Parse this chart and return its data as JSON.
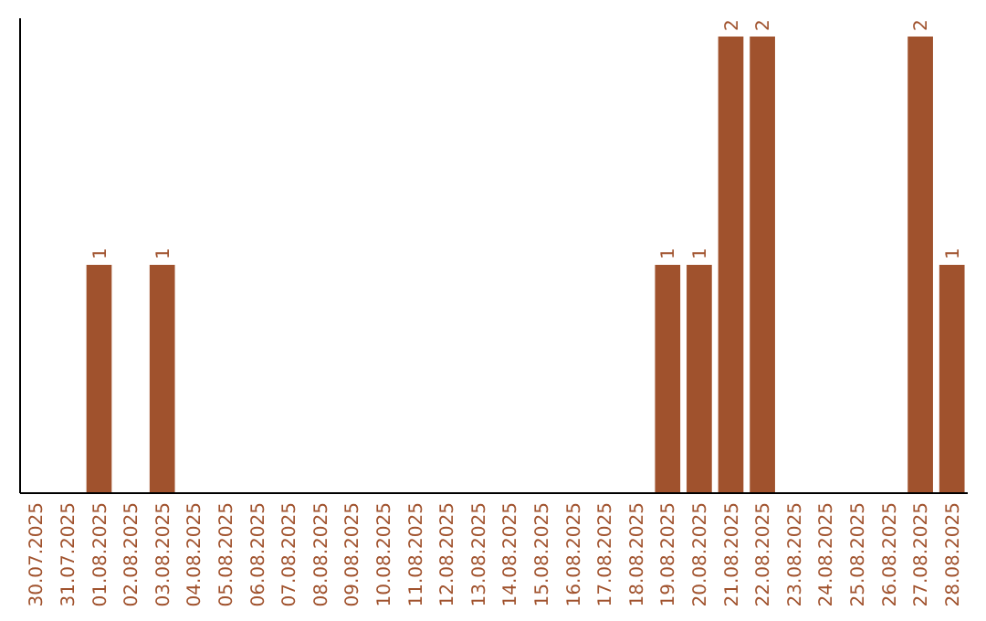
{
  "chart_data": {
    "type": "bar",
    "categories": [
      "30.07.2025",
      "31.07.2025",
      "01.08.2025",
      "02.08.2025",
      "03.08.2025",
      "04.08.2025",
      "05.08.2025",
      "06.08.2025",
      "07.08.2025",
      "08.08.2025",
      "09.08.2025",
      "10.08.2025",
      "11.08.2025",
      "12.08.2025",
      "13.08.2025",
      "14.08.2025",
      "15.08.2025",
      "16.08.2025",
      "17.08.2025",
      "18.08.2025",
      "19.08.2025",
      "20.08.2025",
      "21.08.2025",
      "22.08.2025",
      "23.08.2025",
      "24.08.2025",
      "25.08.2025",
      "26.08.2025",
      "27.08.2025",
      "28.08.2025"
    ],
    "values": [
      0,
      0,
      1,
      0,
      1,
      0,
      0,
      0,
      0,
      0,
      0,
      0,
      0,
      0,
      0,
      0,
      0,
      0,
      0,
      0,
      1,
      1,
      2,
      2,
      0,
      0,
      0,
      0,
      2,
      1
    ],
    "value_labels": [
      null,
      null,
      "1",
      null,
      "1",
      null,
      null,
      null,
      null,
      null,
      null,
      null,
      null,
      null,
      null,
      null,
      null,
      null,
      null,
      null,
      "1",
      "1",
      "2",
      "2",
      null,
      null,
      null,
      null,
      "2",
      "1"
    ],
    "color": "#a0522d",
    "tick_labels": "x"
  }
}
